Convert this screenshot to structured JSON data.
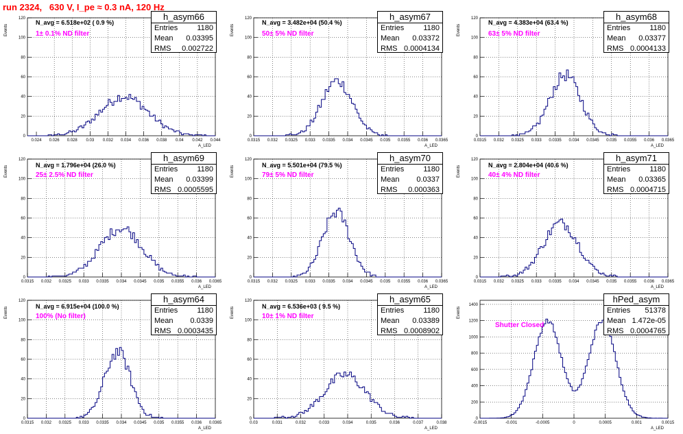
{
  "page_title": "run 2324,   630 V, I_pe ≈ 0.3 nA, 120 Hz",
  "y_axis_label": "Events",
  "stat_labels": {
    "entries": "Entries",
    "mean": "Mean",
    "rms": "RMS"
  },
  "colors": {
    "title": "#ff0000",
    "filter_label": "#ff00ff",
    "histogram": "#000080",
    "grid": "#000000"
  },
  "chart_data": [
    {
      "type": "histogram",
      "name": "h_asym66",
      "entries": "1180",
      "mean": "0.03395",
      "rms": "0.002722",
      "navg": "N_avg = 6.518e+02 ( 0.9 %)",
      "filter": "1± 0.1% ND filter",
      "xlabel": "A_LED",
      "ylabel": "Events",
      "xlim": [
        0.023,
        0.044
      ],
      "ylim": [
        0,
        120
      ],
      "xticks": [
        "0.024",
        "0.026",
        "0.028",
        "0.03",
        "0.032",
        "0.034",
        "0.036",
        "0.038",
        "0.04",
        "0.042",
        "0.044"
      ],
      "yticks": [
        "0",
        "20",
        "40",
        "60",
        "80",
        "100",
        "120"
      ],
      "peaks": [
        {
          "mu": 0.0338,
          "sigma": 0.0027,
          "amp": 40
        }
      ],
      "grid": true
    },
    {
      "type": "histogram",
      "name": "h_asym67",
      "entries": "1180",
      "mean": "0.03372",
      "rms": "0.0004134",
      "navg": "N_avg = 3.482e+04 (50.4 %)",
      "filter": "50± 5% ND filter",
      "xlabel": "A_LED",
      "ylabel": "Events",
      "xlim": [
        0.0315,
        0.0365
      ],
      "ylim": [
        0,
        120
      ],
      "xticks": [
        "0.0315",
        "0.032",
        "0.0325",
        "0.033",
        "0.0335",
        "0.034",
        "0.0345",
        "0.035",
        "0.0355",
        "0.036",
        "0.0365"
      ],
      "yticks": [
        "0",
        "20",
        "40",
        "60",
        "80",
        "100",
        "120"
      ],
      "peaks": [
        {
          "mu": 0.03372,
          "sigma": 0.00041,
          "amp": 56
        }
      ],
      "grid": true
    },
    {
      "type": "histogram",
      "name": "h_asym68",
      "entries": "1180",
      "mean": "0.03377",
      "rms": "0.0004133",
      "navg": "N_avg = 4.383e+04 (63.4 %)",
      "filter": "63± 5% ND filter",
      "xlabel": "A_LED",
      "ylabel": "Events",
      "xlim": [
        0.0315,
        0.0365
      ],
      "ylim": [
        0,
        120
      ],
      "xticks": [
        "0.0315",
        "0.032",
        "0.0325",
        "0.033",
        "0.0335",
        "0.034",
        "0.0345",
        "0.035",
        "0.0355",
        "0.036",
        "0.0365"
      ],
      "yticks": [
        "0",
        "20",
        "40",
        "60",
        "80",
        "100",
        "120"
      ],
      "peaks": [
        {
          "mu": 0.03377,
          "sigma": 0.00041,
          "amp": 62
        }
      ],
      "grid": true
    },
    {
      "type": "histogram",
      "name": "h_asym69",
      "entries": "1180",
      "mean": "0.03399",
      "rms": "0.0005595",
      "navg": "N_avg = 1.796e+04 (26.0 %)",
      "filter": "25± 2.5% ND filter",
      "xlabel": "A_LED",
      "ylabel": "Events",
      "xlim": [
        0.0315,
        0.0365
      ],
      "ylim": [
        0,
        120
      ],
      "xticks": [
        "0.0315",
        "0.032",
        "0.0325",
        "0.033",
        "0.0335",
        "0.034",
        "0.0345",
        "0.035",
        "0.0355",
        "0.036",
        "0.0365"
      ],
      "yticks": [
        "0",
        "20",
        "40",
        "60",
        "80",
        "100",
        "120"
      ],
      "peaks": [
        {
          "mu": 0.03399,
          "sigma": 0.00056,
          "amp": 50
        }
      ],
      "grid": true
    },
    {
      "type": "histogram",
      "name": "h_asym70",
      "entries": "1180",
      "mean": "0.0337",
      "rms": "0.000363",
      "navg": "N_avg = 5.501e+04 (79.5 %)",
      "filter": "79± 5% ND filter",
      "xlabel": "A_LED",
      "ylabel": "Events",
      "xlim": [
        0.0315,
        0.0365
      ],
      "ylim": [
        0,
        120
      ],
      "xticks": [
        "0.0315",
        "0.032",
        "0.0325",
        "0.033",
        "0.0335",
        "0.034",
        "0.0345",
        "0.035",
        "0.0355",
        "0.036",
        "0.0365"
      ],
      "yticks": [
        "0",
        "20",
        "40",
        "60",
        "80",
        "100",
        "120"
      ],
      "peaks": [
        {
          "mu": 0.0337,
          "sigma": 0.00036,
          "amp": 66
        }
      ],
      "grid": true
    },
    {
      "type": "histogram",
      "name": "h_asym71",
      "entries": "1180",
      "mean": "0.03365",
      "rms": "0.0004715",
      "navg": "N_avg = 2.804e+04 (40.6 %)",
      "filter": "40± 4% ND filter",
      "xlabel": "A_LED",
      "ylabel": "Events",
      "xlim": [
        0.0315,
        0.0365
      ],
      "ylim": [
        0,
        120
      ],
      "xticks": [
        "0.0315",
        "0.032",
        "0.0325",
        "0.033",
        "0.0335",
        "0.034",
        "0.0345",
        "0.035",
        "0.0355",
        "0.036",
        "0.0365"
      ],
      "yticks": [
        "0",
        "20",
        "40",
        "60",
        "80",
        "100",
        "120"
      ],
      "peaks": [
        {
          "mu": 0.03365,
          "sigma": 0.00047,
          "amp": 55
        }
      ],
      "grid": true
    },
    {
      "type": "histogram",
      "name": "h_asym64",
      "entries": "1180",
      "mean": "0.0339",
      "rms": "0.0003435",
      "navg": "N_avg = 6.915e+04 (100.0 %)",
      "filter": "100% (No filter)",
      "xlabel": "A_LED",
      "ylabel": "Events",
      "xlim": [
        0.0315,
        0.0365
      ],
      "ylim": [
        0,
        120
      ],
      "xticks": [
        "0.0315",
        "0.032",
        "0.0325",
        "0.033",
        "0.0335",
        "0.034",
        "0.0345",
        "0.035",
        "0.0355",
        "0.036",
        "0.0365"
      ],
      "yticks": [
        "0",
        "20",
        "40",
        "60",
        "80",
        "100",
        "120"
      ],
      "peaks": [
        {
          "mu": 0.0339,
          "sigma": 0.00034,
          "amp": 68
        }
      ],
      "grid": true
    },
    {
      "type": "histogram",
      "name": "h_asym65",
      "entries": "1180",
      "mean": "0.03389",
      "rms": "0.0008902",
      "navg": "N_avg = 6.536e+03 ( 9.5 %)",
      "filter": "10± 1% ND filter",
      "xlabel": "A_LED",
      "ylabel": "Events",
      "xlim": [
        0.03,
        0.038
      ],
      "ylim": [
        0,
        120
      ],
      "xticks": [
        "0.03",
        "0.031",
        "0.032",
        "0.033",
        "0.034",
        "0.035",
        "0.036",
        "0.037",
        "0.038"
      ],
      "yticks": [
        "0",
        "20",
        "40",
        "60",
        "80",
        "100",
        "120"
      ],
      "peaks": [
        {
          "mu": 0.03389,
          "sigma": 0.00089,
          "amp": 44
        }
      ],
      "grid": true
    },
    {
      "type": "histogram",
      "name": "hPed_asym",
      "entries": "51378",
      "mean": "1.472e-05",
      "rms": "0.0004765",
      "navg": "",
      "filter": "Shutter Closed",
      "xlabel": "A_LED",
      "ylabel": "Events",
      "xlim": [
        -0.0015,
        0.0015
      ],
      "ylim": [
        0,
        1450
      ],
      "xticks": [
        "-0.0015",
        "-0.001",
        "-0.0005",
        "0",
        "0.0005",
        "0.001",
        "0.0015"
      ],
      "yticks": [
        "0",
        "200",
        "400",
        "600",
        "800",
        "1000",
        "1200",
        "1400"
      ],
      "peaks": [
        {
          "mu": -0.00042,
          "sigma": 0.00022,
          "amp": 1200
        },
        {
          "mu": 0.00045,
          "sigma": 0.00022,
          "amp": 1190
        }
      ],
      "grid": true
    }
  ]
}
